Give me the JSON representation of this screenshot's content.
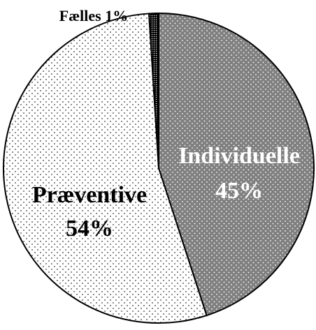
{
  "chart_data": {
    "type": "pie",
    "categories": [
      "Individuelle",
      "Præventive",
      "Fælles"
    ],
    "values": [
      45,
      54,
      1
    ],
    "value_labels": [
      "45%",
      "54%",
      "1%"
    ],
    "colors": [
      "#808080",
      "#ffffff",
      "#000000"
    ]
  }
}
